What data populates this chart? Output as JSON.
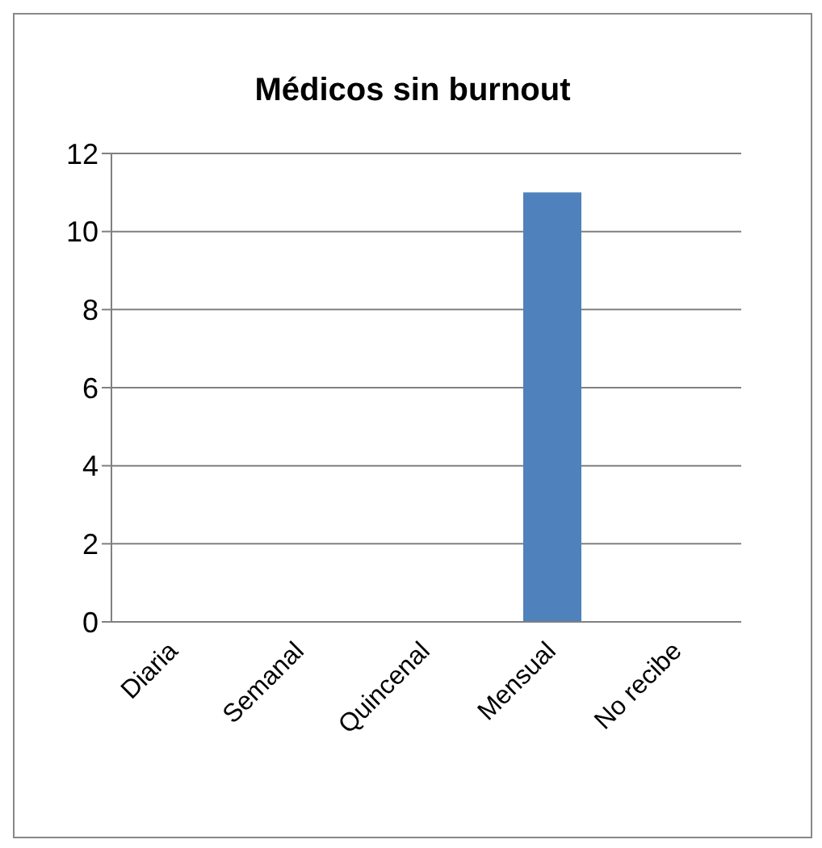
{
  "chart_data": {
    "type": "bar",
    "title": "Médicos sin burnout",
    "categories": [
      "Diaria",
      "Semanal",
      "Quincenal",
      "Mensual",
      "No recibe"
    ],
    "values": [
      0,
      0,
      0,
      11,
      0
    ],
    "color": "#4f81bd",
    "ylim": [
      0,
      12
    ],
    "yticks": [
      0,
      2,
      4,
      6,
      8,
      10,
      12
    ],
    "grid": "y"
  }
}
